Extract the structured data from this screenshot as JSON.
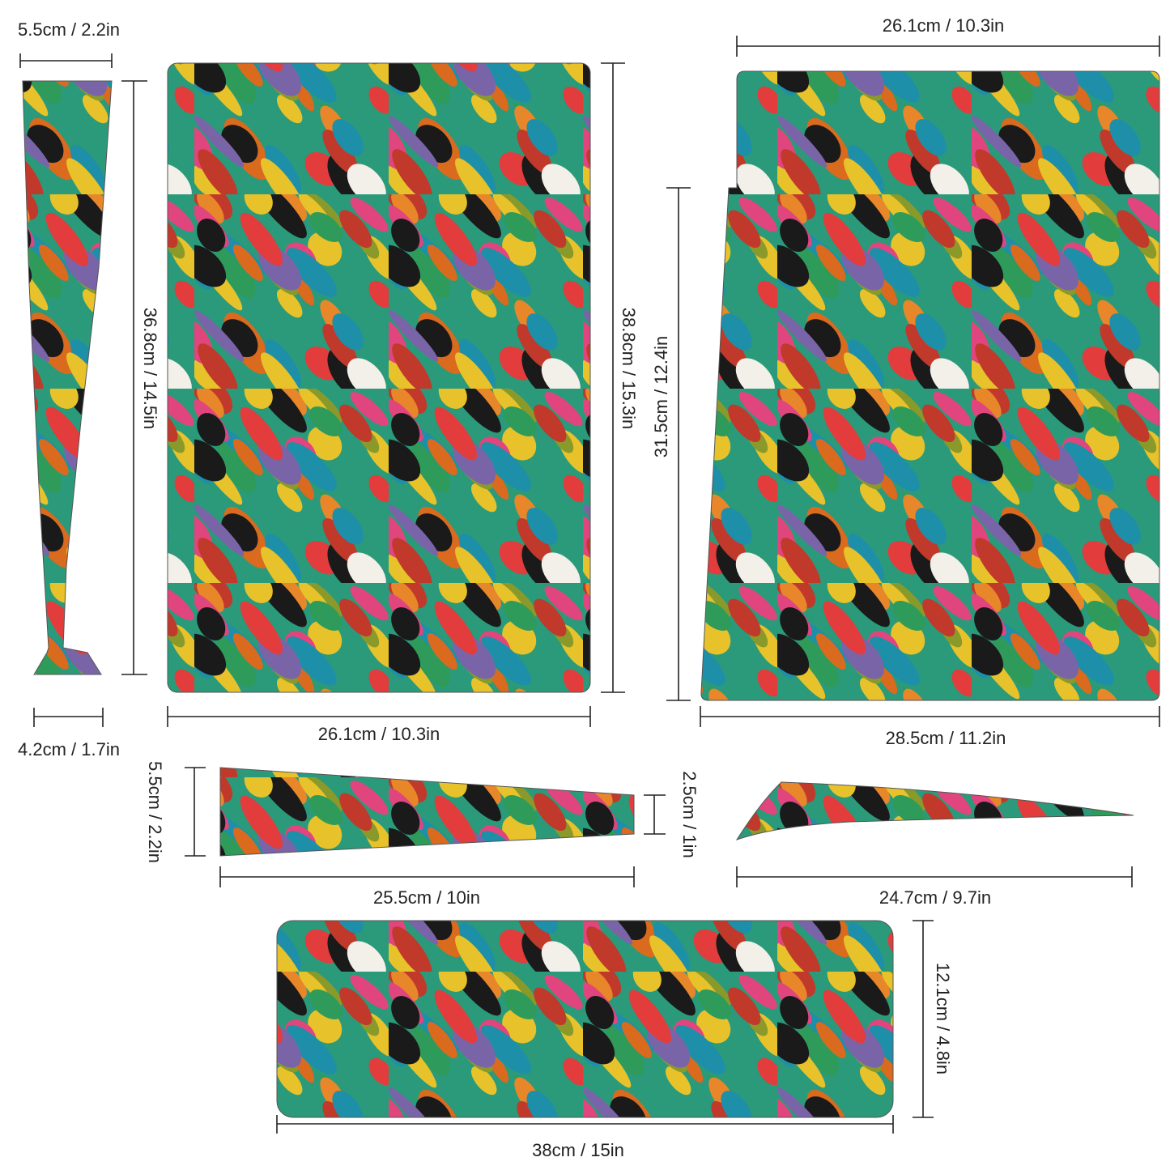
{
  "pieces": [
    {
      "dimensions": [
        "5.5cm / 2.2in",
        "36.8cm / 14.5in",
        "4.2cm / 1.7in"
      ]
    },
    {
      "dimensions": [
        "38.8cm / 15.3in",
        "26.1cm / 10.3in"
      ]
    },
    {
      "dimensions": [
        "26.1cm / 10.3in",
        "31.5cm / 12.4in",
        "28.5cm / 11.2in"
      ]
    },
    {
      "dimensions": [
        "5.5cm / 2.2in",
        "2.5cm / 1in",
        "25.5cm / 10in"
      ]
    },
    {
      "dimensions": [
        "24.7cm / 9.7in"
      ]
    },
    {
      "dimensions": [
        "12.1cm / 4.8in",
        "38cm / 15in"
      ]
    }
  ]
}
